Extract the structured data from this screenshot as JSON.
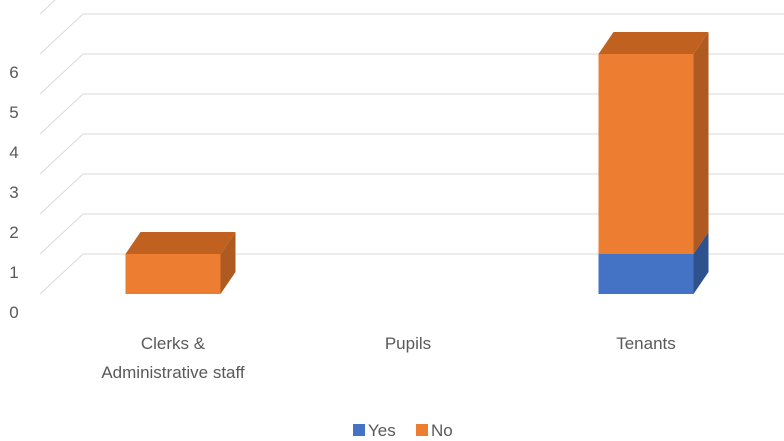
{
  "chart_data": {
    "type": "bar",
    "stacked": true,
    "three_d": true,
    "categories": [
      "Clerks & Administrative staff",
      "Pupils",
      "Tenants"
    ],
    "category_label_lines": [
      [
        "Clerks &",
        "Administrative staff"
      ],
      [
        "Pupils"
      ],
      [
        "Tenants"
      ]
    ],
    "series": [
      {
        "name": "Yes",
        "values": [
          0,
          0,
          1
        ],
        "color": "#4472C4",
        "side_color": "#2F528F",
        "top_color": "#3A62AB"
      },
      {
        "name": "No",
        "values": [
          1,
          0,
          5
        ],
        "color": "#ED7D31",
        "side_color": "#AE5A21",
        "top_color": "#C0611F"
      }
    ],
    "ylim": [
      0,
      6
    ],
    "yticks": [
      0,
      1,
      2,
      3,
      4,
      5,
      6
    ],
    "grid": true,
    "legend_position": "bottom",
    "title": "",
    "xlabel": "",
    "ylabel": ""
  }
}
